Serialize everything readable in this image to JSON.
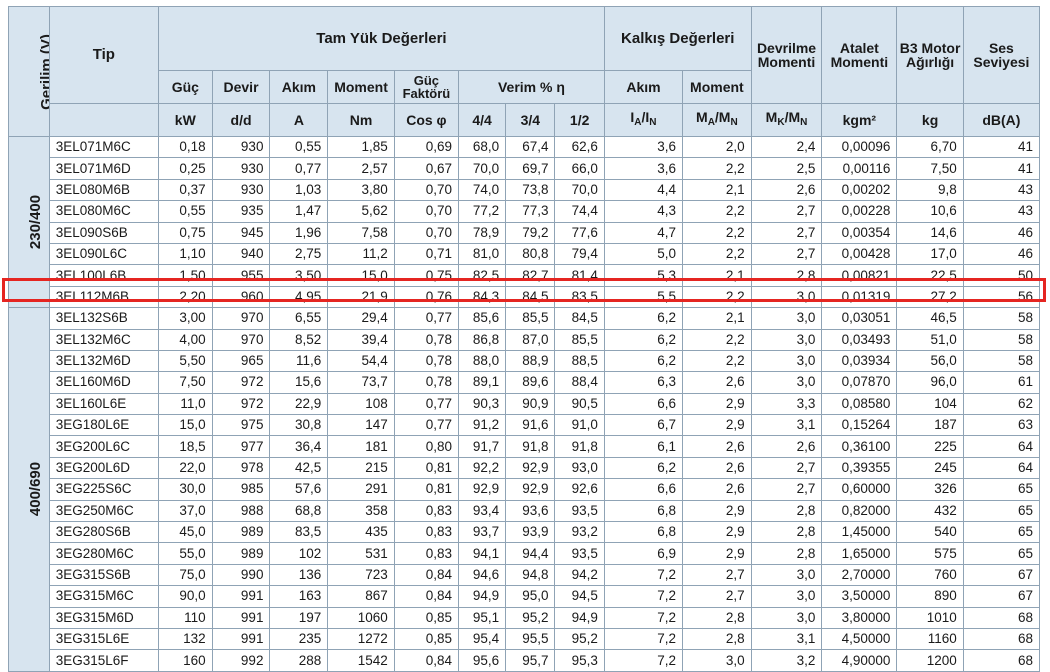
{
  "header": {
    "voltage": "Gerilim (V)",
    "type": "Tip",
    "full_load": "Tam Yük Değerleri",
    "starting": "Kalkış Değerleri",
    "breakdown": "Devrilme Momenti",
    "inertia": "Atalet Momenti",
    "b3_weight": "B3 Motor Ağırlığı",
    "noise": "Ses Seviyesi",
    "power": "Güç",
    "speed": "Devir",
    "current": "Akım",
    "moment": "Moment",
    "power_factor": "Güç Faktörü",
    "efficiency": "Verim % η",
    "start_current": "Akım",
    "start_moment": "Moment",
    "units": {
      "power": "kW",
      "speed": "d/d",
      "current": "A",
      "moment": "Nm",
      "cos": "Cos φ",
      "eff_44": "4/4",
      "eff_34": "3/4",
      "eff_12": "1/2",
      "ia_in": "IA/IN",
      "ma_mn": "MA/MN",
      "mk_mn": "MK/MN",
      "inertia": "kgm²",
      "weight": "kg",
      "noise": "dB(A)"
    }
  },
  "groups": [
    {
      "voltage": "230/400",
      "rows": 8
    },
    {
      "voltage": "400/690",
      "rows": 17
    }
  ],
  "highlighted_row": "3EL112M6B",
  "rows": [
    [
      "3EL071M6C",
      "0,18",
      "930",
      "0,55",
      "1,85",
      "0,69",
      "68,0",
      "67,4",
      "62,6",
      "3,6",
      "2,0",
      "2,4",
      "0,00096",
      "6,70",
      "41"
    ],
    [
      "3EL071M6D",
      "0,25",
      "930",
      "0,77",
      "2,57",
      "0,67",
      "70,0",
      "69,7",
      "66,0",
      "3,6",
      "2,2",
      "2,5",
      "0,00116",
      "7,50",
      "41"
    ],
    [
      "3EL080M6B",
      "0,37",
      "930",
      "1,03",
      "3,80",
      "0,70",
      "74,0",
      "73,8",
      "70,0",
      "4,4",
      "2,1",
      "2,6",
      "0,00202",
      "9,8",
      "43"
    ],
    [
      "3EL080M6C",
      "0,55",
      "935",
      "1,47",
      "5,62",
      "0,70",
      "77,2",
      "77,3",
      "74,4",
      "4,3",
      "2,2",
      "2,7",
      "0,00228",
      "10,6",
      "43"
    ],
    [
      "3EL090S6B",
      "0,75",
      "945",
      "1,96",
      "7,58",
      "0,70",
      "78,9",
      "79,2",
      "77,6",
      "4,7",
      "2,2",
      "2,7",
      "0,00354",
      "14,6",
      "46"
    ],
    [
      "3EL090L6C",
      "1,10",
      "940",
      "2,75",
      "11,2",
      "0,71",
      "81,0",
      "80,8",
      "79,4",
      "5,0",
      "2,2",
      "2,7",
      "0,00428",
      "17,0",
      "46"
    ],
    [
      "3EL100L6B",
      "1,50",
      "955",
      "3,50",
      "15,0",
      "0,75",
      "82,5",
      "82,7",
      "81,4",
      "5,3",
      "2,1",
      "2,8",
      "0,00821",
      "22,5",
      "50"
    ],
    [
      "3EL112M6B",
      "2,20",
      "960",
      "4,95",
      "21,9",
      "0,76",
      "84,3",
      "84,5",
      "83,5",
      "5,5",
      "2,2",
      "3,0",
      "0,01319",
      "27,2",
      "56"
    ],
    [
      "3EL132S6B",
      "3,00",
      "970",
      "6,55",
      "29,4",
      "0,77",
      "85,6",
      "85,5",
      "84,5",
      "6,2",
      "2,1",
      "3,0",
      "0,03051",
      "46,5",
      "58"
    ],
    [
      "3EL132M6C",
      "4,00",
      "970",
      "8,52",
      "39,4",
      "0,78",
      "86,8",
      "87,0",
      "85,5",
      "6,2",
      "2,2",
      "3,0",
      "0,03493",
      "51,0",
      "58"
    ],
    [
      "3EL132M6D",
      "5,50",
      "965",
      "11,6",
      "54,4",
      "0,78",
      "88,0",
      "88,9",
      "88,5",
      "6,2",
      "2,2",
      "3,0",
      "0,03934",
      "56,0",
      "58"
    ],
    [
      "3EL160M6D",
      "7,50",
      "972",
      "15,6",
      "73,7",
      "0,78",
      "89,1",
      "89,6",
      "88,4",
      "6,3",
      "2,6",
      "3,0",
      "0,07870",
      "96,0",
      "61"
    ],
    [
      "3EL160L6E",
      "11,0",
      "972",
      "22,9",
      "108",
      "0,77",
      "90,3",
      "90,9",
      "90,5",
      "6,6",
      "2,9",
      "3,3",
      "0,08580",
      "104",
      "62"
    ],
    [
      "3EG180L6E",
      "15,0",
      "975",
      "30,8",
      "147",
      "0,77",
      "91,2",
      "91,6",
      "91,0",
      "6,7",
      "2,9",
      "3,1",
      "0,15264",
      "187",
      "63"
    ],
    [
      "3EG200L6C",
      "18,5",
      "977",
      "36,4",
      "181",
      "0,80",
      "91,7",
      "91,8",
      "91,8",
      "6,1",
      "2,6",
      "2,6",
      "0,36100",
      "225",
      "64"
    ],
    [
      "3EG200L6D",
      "22,0",
      "978",
      "42,5",
      "215",
      "0,81",
      "92,2",
      "92,9",
      "93,0",
      "6,2",
      "2,6",
      "2,7",
      "0,39355",
      "245",
      "64"
    ],
    [
      "3EG225S6C",
      "30,0",
      "985",
      "57,6",
      "291",
      "0,81",
      "92,9",
      "92,9",
      "92,6",
      "6,6",
      "2,6",
      "2,7",
      "0,60000",
      "326",
      "65"
    ],
    [
      "3EG250M6C",
      "37,0",
      "988",
      "68,8",
      "358",
      "0,83",
      "93,4",
      "93,6",
      "93,5",
      "6,8",
      "2,9",
      "2,8",
      "0,82000",
      "432",
      "65"
    ],
    [
      "3EG280S6B",
      "45,0",
      "989",
      "83,5",
      "435",
      "0,83",
      "93,7",
      "93,9",
      "93,2",
      "6,8",
      "2,9",
      "2,8",
      "1,45000",
      "540",
      "65"
    ],
    [
      "3EG280M6C",
      "55,0",
      "989",
      "102",
      "531",
      "0,83",
      "94,1",
      "94,4",
      "93,5",
      "6,9",
      "2,9",
      "2,8",
      "1,65000",
      "575",
      "65"
    ],
    [
      "3EG315S6B",
      "75,0",
      "990",
      "136",
      "723",
      "0,84",
      "94,6",
      "94,8",
      "94,2",
      "7,2",
      "2,7",
      "3,0",
      "2,70000",
      "760",
      "67"
    ],
    [
      "3EG315M6C",
      "90,0",
      "991",
      "163",
      "867",
      "0,84",
      "94,9",
      "95,0",
      "94,5",
      "7,2",
      "2,7",
      "3,0",
      "3,50000",
      "890",
      "67"
    ],
    [
      "3EG315M6D",
      "110",
      "991",
      "197",
      "1060",
      "0,85",
      "95,1",
      "95,2",
      "94,9",
      "7,2",
      "2,8",
      "3,0",
      "3,80000",
      "1010",
      "68"
    ],
    [
      "3EG315L6E",
      "132",
      "991",
      "235",
      "1272",
      "0,85",
      "95,4",
      "95,5",
      "95,2",
      "7,2",
      "2,8",
      "3,1",
      "4,50000",
      "1160",
      "68"
    ],
    [
      "3EG315L6F",
      "160",
      "992",
      "288",
      "1542",
      "0,84",
      "95,6",
      "95,7",
      "95,3",
      "7,2",
      "3,0",
      "3,2",
      "4,90000",
      "1200",
      "68"
    ]
  ]
}
